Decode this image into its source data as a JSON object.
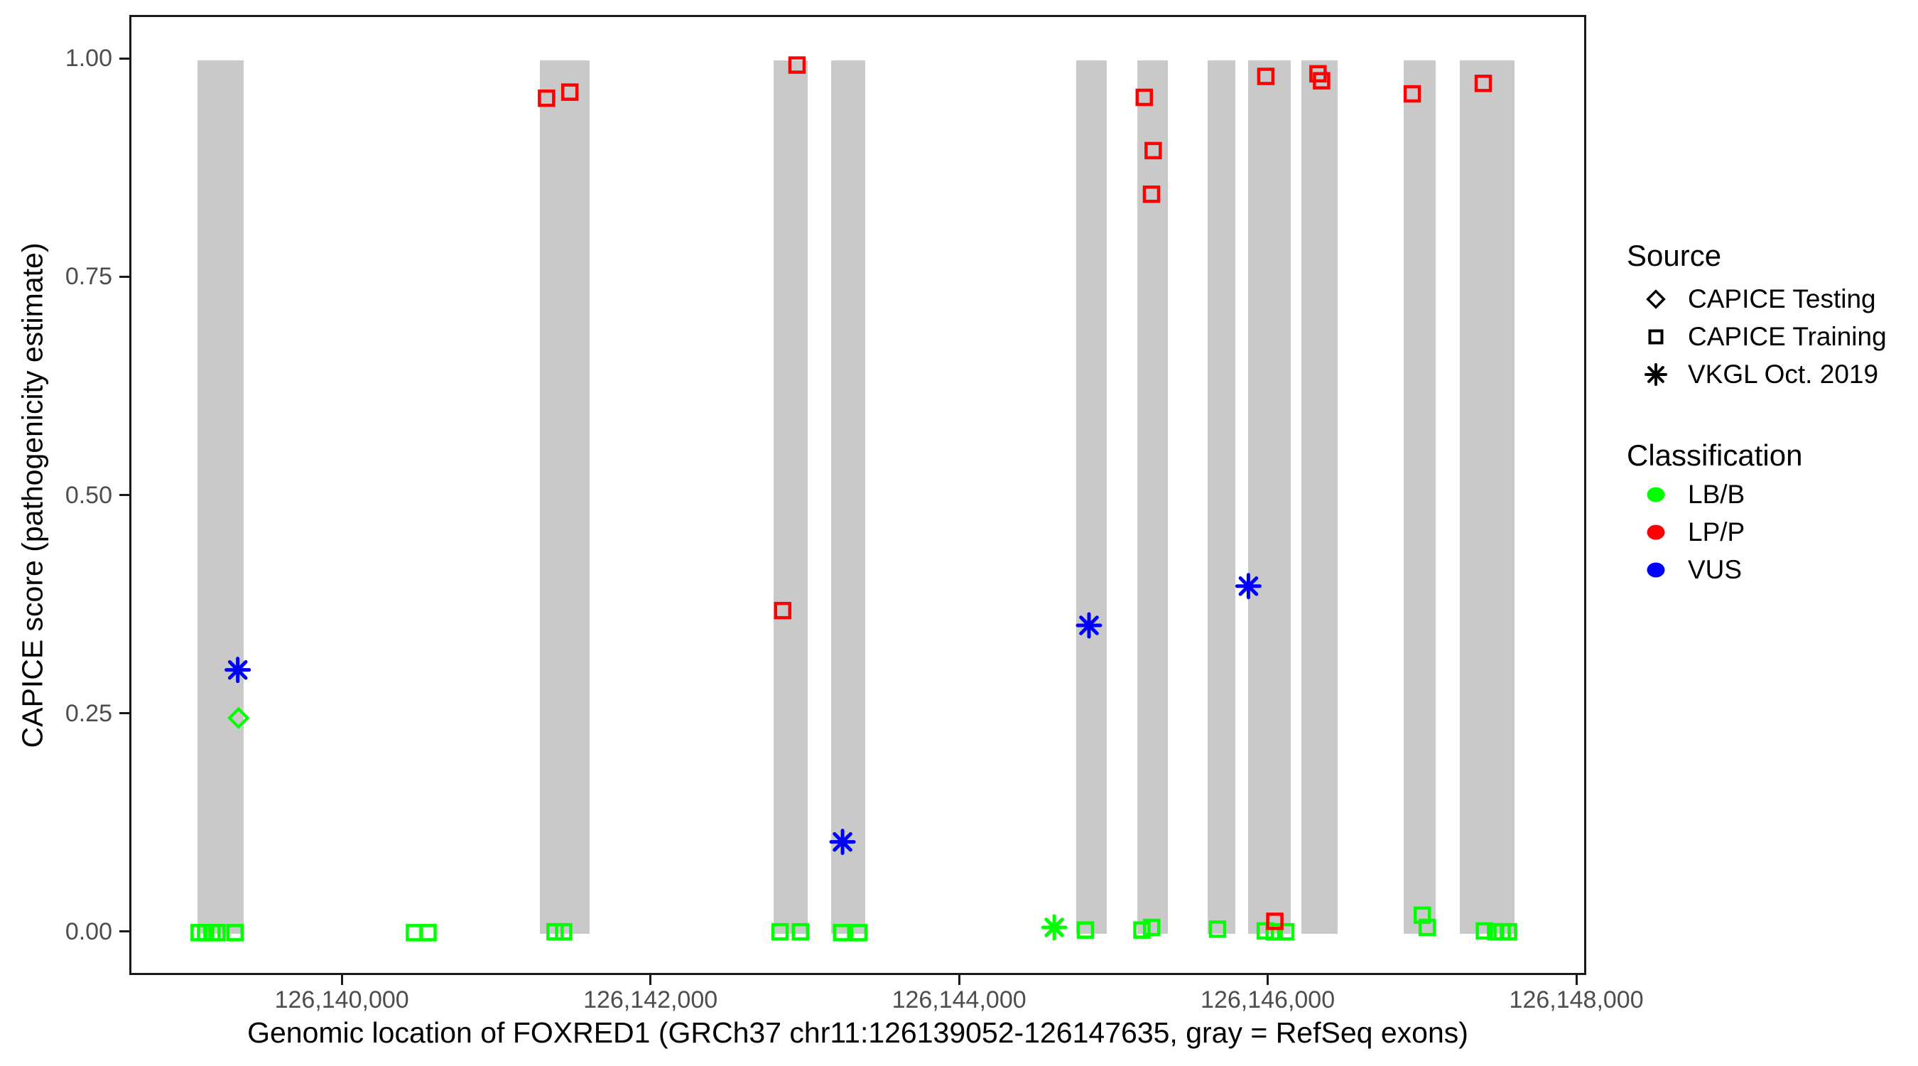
{
  "figure": {
    "background": "#FFFFFF",
    "axis_color": "#1a1a1a",
    "tick_label_color": "#4d4d4d",
    "title_color": "#000000"
  },
  "chart_data": {
    "type": "scatter",
    "title": "",
    "xlabel": "Genomic location of FOXRED1 (GRCh37 chr11:126139052-126147635, gray = RefSeq exons)",
    "ylabel": "CAPICE score (pathogenicity estimate)",
    "xlim": [
      126138623,
      126148064
    ],
    "ylim": [
      -0.05,
      1.05
    ],
    "grid": false,
    "legend_position": "right",
    "exon_note": "gray bars span CAPICE score 0 to 1",
    "exon_color": "#C9C9C9",
    "x_ticks": [
      {
        "value": 126140000,
        "label": "126,140,000"
      },
      {
        "value": 126142000,
        "label": "126,142,000"
      },
      {
        "value": 126144000,
        "label": "126,144,000"
      },
      {
        "value": 126146000,
        "label": "126,146,000"
      },
      {
        "value": 126148000,
        "label": "126,148,000"
      }
    ],
    "y_ticks": [
      {
        "value": 0,
        "label": "0.00"
      },
      {
        "value": 0.25,
        "label": "0.25"
      },
      {
        "value": 0.5,
        "label": "0.50"
      },
      {
        "value": 0.75,
        "label": "0.75"
      },
      {
        "value": 1,
        "label": "1.00"
      }
    ],
    "exons": [
      [
        126139052,
        126139352
      ],
      [
        126141272,
        126141594
      ],
      [
        126142786,
        126143003
      ],
      [
        126143155,
        126143376
      ],
      [
        126144747,
        126144945
      ],
      [
        126145139,
        126145341
      ],
      [
        126145599,
        126145778
      ],
      [
        126145861,
        126146137
      ],
      [
        126146206,
        126146437
      ],
      [
        126146869,
        126147076
      ],
      [
        126147233,
        126147587
      ]
    ],
    "series": [
      {
        "name": "CAPICE Training - LB/B",
        "source": "CAPICE Training",
        "classification": "LB/B",
        "shape": "square",
        "color": "#00FF00",
        "points": [
          [
            126139062,
            0.001
          ],
          [
            126139104,
            0.001
          ],
          [
            126139145,
            0.001
          ],
          [
            126139177,
            0.001
          ],
          [
            126139294,
            0.001
          ],
          [
            126140457,
            0.001
          ],
          [
            126140545,
            0.001
          ],
          [
            126141368,
            0.002
          ],
          [
            126141424,
            0.002
          ],
          [
            126142826,
            0.002
          ],
          [
            126142958,
            0.002
          ],
          [
            126143225,
            0.001
          ],
          [
            126143336,
            0.001
          ],
          [
            126144805,
            0.004
          ],
          [
            126145171,
            0.004
          ],
          [
            126145234,
            0.007
          ],
          [
            126145661,
            0.005
          ],
          [
            126145970,
            0.003
          ],
          [
            126146028,
            0.002
          ],
          [
            126146103,
            0.002
          ],
          [
            126146988,
            0.021
          ],
          [
            126147020,
            0.007
          ],
          [
            126147390,
            0.003
          ],
          [
            126147463,
            0.002
          ],
          [
            126147505,
            0.002
          ],
          [
            126147546,
            0.002
          ]
        ]
      },
      {
        "name": "CAPICE Training - LP/P",
        "source": "CAPICE Training",
        "classification": "LP/P",
        "shape": "square",
        "color": "#FF0000",
        "points": [
          [
            126141313,
            0.957
          ],
          [
            126141464,
            0.964
          ],
          [
            126142843,
            0.37
          ],
          [
            126142936,
            0.995
          ],
          [
            126145186,
            0.958
          ],
          [
            126145244,
            0.897
          ],
          [
            126145233,
            0.847
          ],
          [
            126145974,
            0.982
          ],
          [
            126146032,
            0.014
          ],
          [
            126146312,
            0.985
          ],
          [
            126146335,
            0.977
          ],
          [
            126146923,
            0.962
          ],
          [
            126147383,
            0.974
          ]
        ]
      },
      {
        "name": "CAPICE Testing - LB/B",
        "source": "CAPICE Testing",
        "classification": "LB/B",
        "shape": "diamond",
        "color": "#00FF00",
        "points": [
          [
            126139317,
            0.247
          ]
        ]
      },
      {
        "name": "VKGL Oct. 2019 - VUS",
        "source": "VKGL Oct. 2019",
        "classification": "VUS",
        "shape": "asterisk",
        "color": "#0000FF",
        "points": [
          [
            126139312,
            0.302
          ],
          [
            126143231,
            0.105
          ],
          [
            126144828,
            0.353
          ],
          [
            126145861,
            0.398
          ]
        ]
      },
      {
        "name": "VKGL Oct. 2019 - LB/B",
        "source": "VKGL Oct. 2019",
        "classification": "LB/B",
        "shape": "asterisk",
        "color": "#00FF00",
        "points": [
          [
            126144603,
            0.007
          ]
        ]
      }
    ]
  },
  "legend": {
    "source": {
      "title": "Source",
      "items": [
        {
          "icon": "diamond-icon",
          "label": "CAPICE Testing"
        },
        {
          "icon": "square-icon",
          "label": "CAPICE Training"
        },
        {
          "icon": "asterisk-icon",
          "label": "VKGL Oct. 2019"
        }
      ]
    },
    "classification": {
      "title": "Classification",
      "items": [
        {
          "icon": "dot-icon",
          "label": "LB/B",
          "color": "#00FF00"
        },
        {
          "icon": "dot-icon",
          "label": "LP/P",
          "color": "#FF0000"
        },
        {
          "icon": "dot-icon",
          "label": "VUS",
          "color": "#0000FF"
        }
      ]
    }
  }
}
